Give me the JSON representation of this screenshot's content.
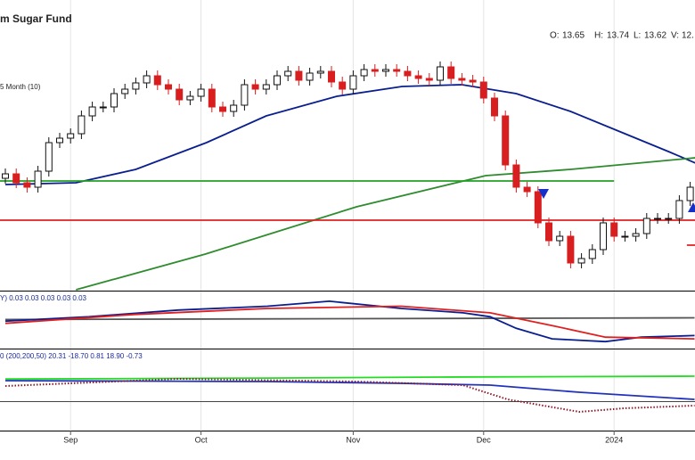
{
  "chart_data": [
    {
      "type": "candlestick",
      "title": "m Sugar Fund",
      "header": [
        {
          "label": "O:",
          "value": 13.65
        },
        {
          "label": "H:",
          "value": 13.74
        },
        {
          "label": "L:",
          "value": 13.62
        },
        {
          "label": "V:",
          "value": "12."
        }
      ],
      "categories": [
        null,
        null,
        null,
        null,
        null,
        null,
        "Sep",
        null,
        null,
        null,
        null,
        null,
        null,
        null,
        null,
        null,
        null,
        null,
        "Oct",
        null,
        null,
        null,
        null,
        null,
        null,
        null,
        null,
        null,
        null,
        null,
        null,
        null,
        "Nov",
        null,
        null,
        null,
        null,
        null,
        null,
        null,
        null,
        null,
        null,
        null,
        "Dec",
        null,
        null,
        null,
        null,
        null,
        null,
        null,
        null,
        null,
        null,
        null,
        "2024",
        null,
        null,
        null,
        null,
        null,
        null,
        null
      ],
      "open": [
        13.8,
        13.85,
        13.75,
        13.7,
        13.88,
        14.2,
        14.25,
        14.3,
        14.5,
        14.6,
        14.6,
        14.75,
        14.8,
        14.87,
        14.95,
        14.85,
        14.8,
        14.68,
        14.72,
        14.8,
        14.6,
        14.55,
        14.62,
        14.85,
        14.8,
        14.85,
        14.95,
        15.0,
        14.9,
        14.98,
        15.0,
        14.88,
        14.8,
        14.95,
        15.02,
        15.0,
        15.02,
        15.0,
        14.95,
        14.92,
        14.9,
        15.05,
        14.92,
        14.9,
        14.88,
        14.7,
        14.5,
        13.95,
        13.7,
        13.65,
        13.3,
        13.1,
        13.15,
        12.85,
        12.9,
        13.0,
        13.3,
        13.15,
        13.15,
        13.18,
        13.35,
        13.35,
        13.35,
        13.55
      ],
      "high": [
        13.91,
        13.91,
        13.81,
        13.94,
        14.26,
        14.31,
        14.36,
        14.56,
        14.66,
        14.66,
        14.81,
        14.86,
        14.93,
        15.01,
        15.01,
        14.91,
        14.86,
        14.78,
        14.86,
        14.86,
        14.66,
        14.68,
        14.91,
        14.91,
        14.91,
        15.01,
        15.06,
        15.06,
        15.04,
        15.06,
        15.06,
        14.94,
        15.01,
        15.08,
        15.08,
        15.08,
        15.08,
        15.06,
        15.01,
        14.98,
        15.11,
        15.11,
        14.98,
        14.96,
        14.94,
        14.76,
        14.56,
        14.01,
        13.76,
        13.71,
        13.36,
        13.21,
        13.21,
        12.96,
        13.06,
        13.36,
        13.36,
        13.21,
        13.24,
        13.41,
        13.41,
        13.41,
        13.61,
        13.76
      ],
      "low": [
        13.74,
        13.69,
        13.64,
        13.64,
        13.82,
        14.14,
        14.19,
        14.24,
        14.44,
        14.54,
        14.54,
        14.69,
        14.74,
        14.81,
        14.79,
        14.74,
        14.62,
        14.62,
        14.66,
        14.54,
        14.49,
        14.49,
        14.56,
        14.74,
        14.74,
        14.79,
        14.89,
        14.84,
        14.84,
        14.92,
        14.82,
        14.74,
        14.74,
        14.89,
        14.94,
        14.94,
        14.94,
        14.89,
        14.86,
        14.84,
        14.84,
        14.86,
        14.84,
        14.82,
        14.64,
        14.44,
        13.89,
        13.64,
        13.59,
        13.24,
        13.04,
        13.04,
        12.79,
        12.79,
        12.84,
        12.94,
        13.09,
        13.09,
        13.09,
        13.12,
        13.29,
        13.29,
        13.29,
        13.49
      ],
      "close": [
        13.85,
        13.75,
        13.7,
        13.88,
        14.2,
        14.25,
        14.3,
        14.5,
        14.6,
        14.6,
        14.75,
        14.8,
        14.87,
        14.95,
        14.85,
        14.8,
        14.68,
        14.72,
        14.8,
        14.6,
        14.55,
        14.62,
        14.85,
        14.8,
        14.85,
        14.95,
        15.0,
        14.9,
        14.98,
        15.0,
        14.88,
        14.8,
        14.95,
        15.02,
        15.0,
        15.02,
        15.0,
        14.95,
        14.92,
        14.9,
        15.05,
        14.92,
        14.9,
        14.88,
        14.7,
        14.5,
        13.95,
        13.7,
        13.65,
        13.3,
        13.1,
        13.15,
        12.85,
        12.9,
        13.0,
        13.3,
        13.15,
        13.15,
        13.18,
        13.35,
        13.35,
        13.35,
        13.55,
        13.7
      ],
      "up_color": "#111111",
      "down_color": "#d81e1e",
      "ylim": [
        12.55,
        15.35
      ],
      "series": [
        {
          "name": "5 Month (10)",
          "color": "#0a1f8f",
          "x": [
            0,
            6.5,
            12,
            18.5,
            24,
            30.5,
            36.5,
            42,
            47,
            52,
            57,
            61,
            63.5
          ],
          "values": [
            13.73,
            13.75,
            13.9,
            14.2,
            14.5,
            14.72,
            14.83,
            14.85,
            14.75,
            14.55,
            14.3,
            14.1,
            13.97
          ]
        },
        {
          "color": "#2e8b2e",
          "x": [
            6.5,
            18.4,
            32.3,
            44.2,
            52,
            63.5
          ],
          "values": [
            12.55,
            12.95,
            13.48,
            13.83,
            13.9,
            14.03
          ]
        },
        {
          "color": "#22a022",
          "x": [
            -0.5,
            56
          ],
          "values": [
            13.77,
            13.77
          ]
        },
        {
          "color": "#e02020",
          "x": [
            -0.5,
            64
          ],
          "values": [
            13.33,
            13.33
          ]
        },
        {
          "color": "#e02020",
          "x": [
            62.7,
            64
          ],
          "values": [
            13.05,
            13.05
          ]
        }
      ]
    },
    {
      "type": "line",
      "title": "Y) 0.03 0.03 0.03 0.03 0.03",
      "ylim": [
        0,
        0.1
      ],
      "series": [
        {
          "color": "#555555",
          "x": [
            0,
            63.4
          ],
          "values": [
            0.051,
            0.054
          ]
        },
        {
          "color": "#0a1f8f",
          "x": [
            0,
            7.7,
            15.9,
            24.1,
            29.8,
            36.4,
            42.1,
            44.6,
            47,
            50.3,
            55.2,
            58.5,
            63.4
          ],
          "values": [
            0.048,
            0.056,
            0.068,
            0.075,
            0.084,
            0.071,
            0.063,
            0.056,
            0.035,
            0.016,
            0.011,
            0.019,
            0.022
          ]
        },
        {
          "color": "#e02020",
          "x": [
            0,
            11.8,
            24.1,
            36.4,
            44.6,
            50.3,
            55.2,
            63.4
          ],
          "values": [
            0.044,
            0.06,
            0.071,
            0.075,
            0.063,
            0.04,
            0.019,
            0.016
          ]
        }
      ]
    },
    {
      "type": "line",
      "title": "0 (200,200,50) 20.31 -18.70 0.81 18.90 -0.73",
      "ylim": [
        -36,
        45
      ],
      "series": [
        {
          "color": "#22dd22",
          "x": [
            0,
            24,
            40,
            63.4
          ],
          "values": [
            16,
            17,
            18,
            18.9
          ]
        },
        {
          "color": "#2233bb",
          "x": [
            0,
            24.1,
            36.4,
            44.6,
            52.8,
            63.4
          ],
          "values": [
            14.4,
            13.5,
            11.7,
            9.9,
            2.7,
            -4.5
          ]
        },
        {
          "color": "#8b1a2b",
          "line_style": "dotted",
          "x": [
            0,
            15.9,
            32.3,
            42.1,
            46.2,
            52.8,
            56.9,
            63.4
          ],
          "values": [
            9,
            16.2,
            13.5,
            9.9,
            -4.5,
            -17.1,
            -13.5,
            -10.8
          ]
        }
      ]
    }
  ]
}
